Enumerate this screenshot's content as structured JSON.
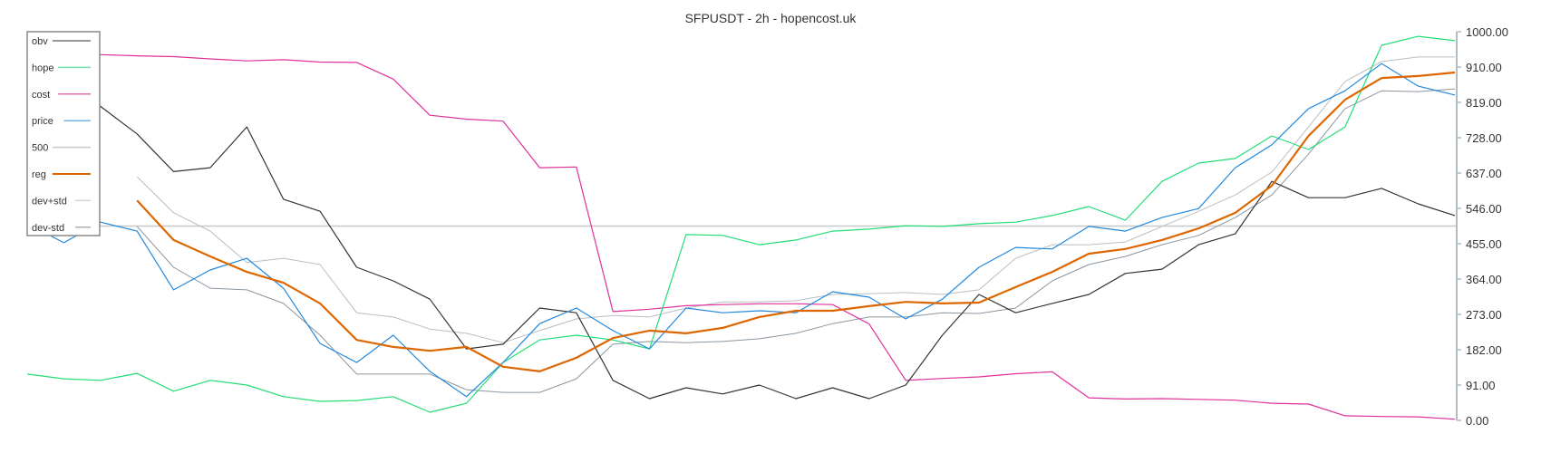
{
  "chart_data": {
    "type": "line",
    "title": "SFPUSDT - 2h - hopencost.uk",
    "xlabel": "",
    "ylabel": "",
    "ylim": [
      0,
      1000
    ],
    "y_axis_position": "right",
    "y_ticks": [
      "0.00",
      "91.00",
      "182.00",
      "273.00",
      "364.00",
      "455.00",
      "546.00",
      "637.00",
      "728.00",
      "819.00",
      "910.00",
      "1000.00"
    ],
    "grid": false,
    "legend_position": "upper-left",
    "reference_line": {
      "name": "500",
      "value": 500,
      "color": "#c8c8c8"
    },
    "x_index": [
      0,
      1,
      2,
      3,
      4,
      5,
      6,
      7,
      8,
      9,
      10,
      11,
      12,
      13,
      14,
      15,
      16,
      17,
      18,
      19,
      20,
      21,
      22,
      23,
      24,
      25,
      26,
      27,
      28,
      29,
      30,
      31,
      32,
      33,
      34,
      35,
      36,
      37,
      38,
      39
    ],
    "series": [
      {
        "name": "obv",
        "color": "#333333",
        "width": 1.2,
        "values": [
          837,
          815,
          808,
          737,
          640,
          650,
          755,
          569,
          538,
          394,
          359,
          312,
          184,
          196,
          289,
          277,
          103,
          56,
          84,
          68,
          91,
          56,
          84,
          56,
          91,
          219,
          324,
          277,
          301,
          324,
          378,
          389,
          452,
          480,
          615,
          573,
          573,
          597,
          557,
          527
        ]
      },
      {
        "name": "hope",
        "color": "#22dd77",
        "width": 1.2,
        "values": [
          119,
          107,
          103,
          121,
          75,
          103,
          91,
          61,
          49,
          51,
          61,
          21,
          44,
          149,
          207,
          219,
          207,
          184,
          478,
          476,
          452,
          464,
          487,
          492,
          501,
          499,
          506,
          510,
          527,
          550,
          515,
          615,
          662,
          674,
          732,
          697,
          755,
          965,
          988,
          977
        ]
      },
      {
        "name": "cost",
        "color": "#e0309a",
        "width": 1.2,
        "values": [
          946,
          942,
          941,
          938,
          936,
          930,
          925,
          928,
          922,
          921,
          878,
          785,
          775,
          770,
          650,
          652,
          280,
          286,
          295,
          298,
          300,
          300,
          298,
          248,
          103,
          108,
          112,
          120,
          125,
          58,
          55,
          56,
          54,
          52,
          44,
          42,
          12,
          10,
          9,
          3
        ]
      },
      {
        "name": "price",
        "color": "#2288dd",
        "width": 1.2,
        "values": [
          506,
          457,
          510,
          487,
          336,
          387,
          417,
          340,
          198,
          149,
          219,
          126,
          61,
          149,
          249,
          289,
          231,
          184,
          289,
          277,
          282,
          277,
          331,
          317,
          261,
          312,
          394,
          445,
          441,
          499,
          487,
          522,
          545,
          650,
          709,
          802,
          848,
          918,
          860,
          837
        ]
      },
      {
        "name": "500",
        "color": "#c8c8c8",
        "width": 1.5,
        "values": [
          500,
          500,
          500,
          500,
          500,
          500,
          500,
          500,
          500,
          500,
          500,
          500,
          500,
          500,
          500,
          500,
          500,
          500,
          500,
          500,
          500,
          500,
          500,
          500,
          500,
          500,
          500,
          500,
          500,
          500,
          500,
          500,
          500,
          500,
          500,
          500,
          500,
          500,
          500,
          500
        ]
      },
      {
        "name": "reg",
        "color": "#dd6600",
        "width": 2.2,
        "values": [
          null,
          null,
          null,
          566,
          464,
          422,
          382,
          354,
          301,
          207,
          189,
          179,
          189,
          138,
          126,
          161,
          212,
          231,
          224,
          238,
          266,
          282,
          282,
          294,
          305,
          301,
          303,
          343,
          382,
          429,
          441,
          464,
          494,
          534,
          604,
          732,
          825,
          881,
          886,
          895
        ]
      },
      {
        "name": "dev+std",
        "color": "#b8bec4",
        "width": 1.0,
        "values": [
          null,
          null,
          null,
          627,
          534,
          487,
          406,
          417,
          401,
          277,
          266,
          235,
          224,
          200,
          231,
          261,
          270,
          266,
          289,
          305,
          305,
          308,
          324,
          326,
          329,
          324,
          336,
          417,
          452,
          452,
          459,
          499,
          538,
          580,
          639,
          755,
          872,
          923,
          935,
          935
        ]
      },
      {
        "name": "dev-std",
        "color": "#8a96a0",
        "width": 1.0,
        "values": [
          null,
          null,
          null,
          499,
          394,
          340,
          336,
          301,
          219,
          119,
          119,
          119,
          79,
          72,
          72,
          107,
          196,
          203,
          200,
          203,
          210,
          224,
          249,
          266,
          266,
          277,
          275,
          289,
          359,
          401,
          422,
          452,
          476,
          522,
          580,
          685,
          802,
          848,
          846,
          853
        ]
      }
    ]
  },
  "legend": {
    "items": [
      {
        "label": "obv",
        "color": "#777777"
      },
      {
        "label": "hope",
        "color": "#77e0a8"
      },
      {
        "label": "cost",
        "color": "#e070b0"
      },
      {
        "label": "price",
        "color": "#77b4e8"
      },
      {
        "label": "500",
        "color": "#c8c8c8"
      },
      {
        "label": "reg",
        "color": "#dd6600"
      },
      {
        "label": "dev+std",
        "color": "#d0d4d8"
      },
      {
        "label": "dev-std",
        "color": "#a8b0b8"
      }
    ]
  }
}
